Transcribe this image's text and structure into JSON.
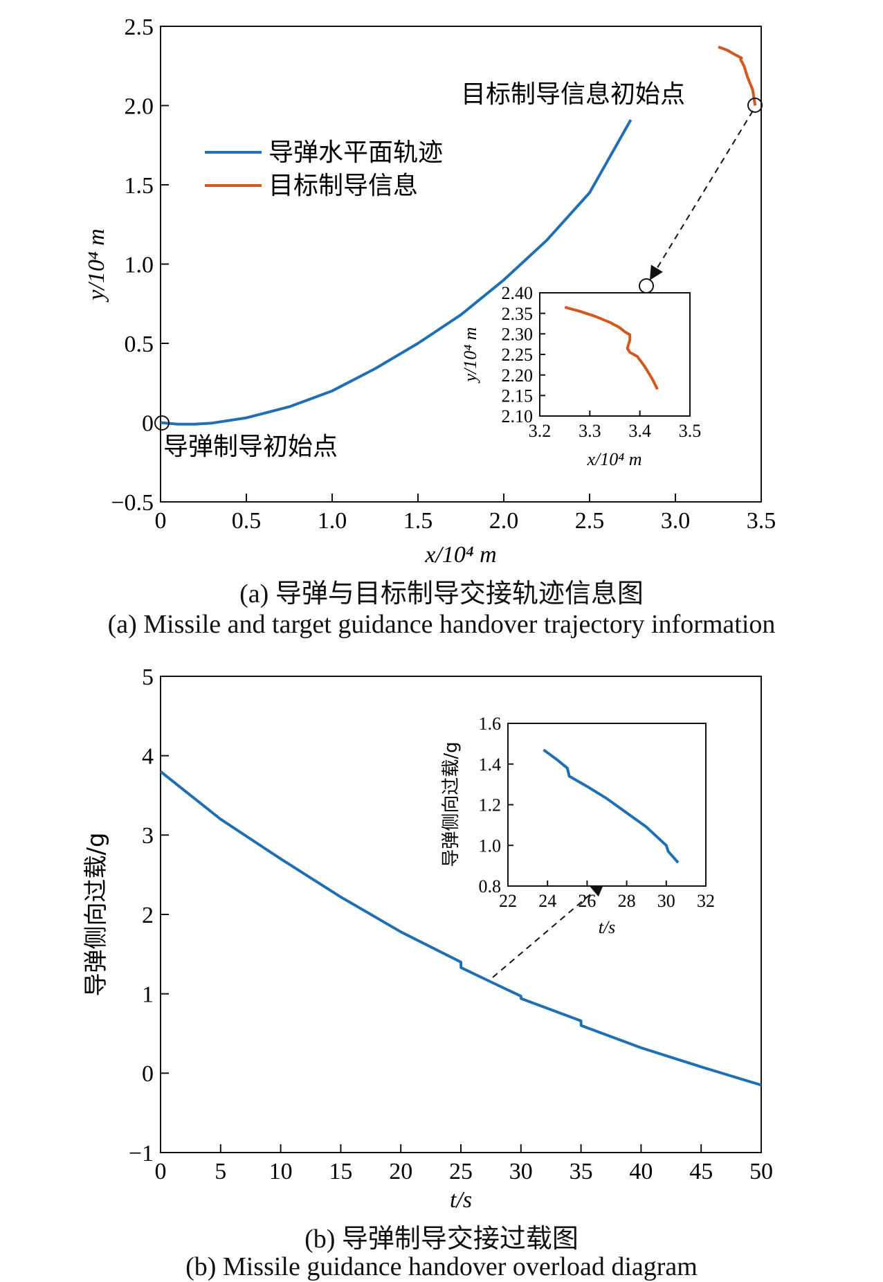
{
  "chart_data": [
    {
      "type": "line",
      "caption_cn": "(a) 导弹与目标制导交接轨迹信息图",
      "caption_en": "(a) Missile and target guidance handover trajectory information",
      "xlabel": "x/10⁴ m",
      "ylabel": "y/10⁴ m",
      "xlim": [
        0,
        3.5
      ],
      "ylim": [
        -0.5,
        2.5
      ],
      "xticks": [
        "0",
        "0.5",
        "1.0",
        "1.5",
        "2.0",
        "2.5",
        "3.0",
        "3.5"
      ],
      "yticks": [
        "−0.5",
        "0",
        "0.5",
        "1.0",
        "1.5",
        "2.0",
        "2.5"
      ],
      "legend": {
        "placement": "upper-left",
        "entries": [
          "导弹水平面轨迹",
          "目标制导信息"
        ]
      },
      "annotations": {
        "target_start": "目标制导信息初始点",
        "missile_start": "导弹制导初始点"
      },
      "series": [
        {
          "name": "导弹水平面轨迹",
          "color": "#1f6fb4",
          "x": [
            0,
            0.1,
            0.2,
            0.3,
            0.5,
            0.75,
            1.0,
            1.25,
            1.5,
            1.75,
            2.0,
            2.25,
            2.5,
            2.74
          ],
          "y": [
            0,
            -0.01,
            -0.01,
            -0.003,
            0.03,
            0.1,
            0.2,
            0.34,
            0.5,
            0.68,
            0.9,
            1.15,
            1.45,
            1.91
          ]
        },
        {
          "name": "目标制导信息",
          "color": "#d2581d",
          "x": [
            3.25,
            3.3,
            3.35,
            3.385,
            3.38,
            3.4,
            3.42,
            3.45,
            3.465
          ],
          "y": [
            2.37,
            2.35,
            2.32,
            2.3,
            2.29,
            2.25,
            2.18,
            2.1,
            2.0
          ]
        }
      ],
      "inset": {
        "xlabel": "x/10⁴ m",
        "ylabel": "y/10⁴ m",
        "xlim": [
          3.2,
          3.5
        ],
        "ylim": [
          2.1,
          2.4
        ],
        "xticks": [
          "3.2",
          "3.3",
          "3.4",
          "3.5"
        ],
        "yticks": [
          "2.10",
          "2.15",
          "2.20",
          "2.25",
          "2.30",
          "2.35",
          "2.40"
        ],
        "series": [
          {
            "color": "#d2581d",
            "x": [
              3.25,
              3.28,
              3.31,
              3.34,
              3.36,
              3.37,
              3.38,
              3.38,
              3.375,
              3.38,
              3.395,
              3.41,
              3.425,
              3.435
            ],
            "y": [
              2.365,
              2.355,
              2.343,
              2.328,
              2.315,
              2.305,
              2.298,
              2.285,
              2.265,
              2.255,
              2.245,
              2.22,
              2.19,
              2.165
            ]
          }
        ]
      }
    },
    {
      "type": "line",
      "caption_cn": "(b) 导弹制导交接过载图",
      "caption_en": "(b) Missile guidance handover overload diagram",
      "xlabel": "t/s",
      "ylabel": "导弹侧向过载/g",
      "xlim": [
        0,
        50
      ],
      "ylim": [
        -1,
        5
      ],
      "xticks": [
        "0",
        "5",
        "10",
        "15",
        "20",
        "25",
        "30",
        "35",
        "40",
        "45",
        "50"
      ],
      "yticks": [
        "−1",
        "0",
        "1",
        "2",
        "3",
        "4",
        "5"
      ],
      "series": [
        {
          "color": "#1f6fb4",
          "x": [
            0,
            5,
            10,
            15,
            20,
            25,
            25.01,
            27.5,
            30,
            30.01,
            35,
            35.01,
            40,
            45,
            50
          ],
          "y": [
            3.8,
            3.2,
            2.7,
            2.22,
            1.78,
            1.4,
            1.33,
            1.15,
            0.97,
            0.94,
            0.66,
            0.6,
            0.32,
            0.08,
            -0.15
          ]
        }
      ],
      "inset": {
        "xlabel": "t/s",
        "ylabel": "导弹侧向过载/g",
        "xlim": [
          22,
          32
        ],
        "ylim": [
          0.8,
          1.6
        ],
        "xticks": [
          "22",
          "24",
          "26",
          "28",
          "30",
          "32"
        ],
        "yticks": [
          "0.8",
          "1.0",
          "1.2",
          "1.4",
          "1.6"
        ],
        "series": [
          {
            "color": "#1f6fb4",
            "x": [
              23.8,
              24.5,
              25.0,
              25.1,
              26.0,
              27.0,
              28.0,
              29.0,
              30.0,
              30.1,
              30.6
            ],
            "y": [
              1.47,
              1.42,
              1.38,
              1.34,
              1.29,
              1.23,
              1.16,
              1.09,
              1.0,
              0.97,
              0.915
            ]
          }
        ]
      }
    }
  ]
}
